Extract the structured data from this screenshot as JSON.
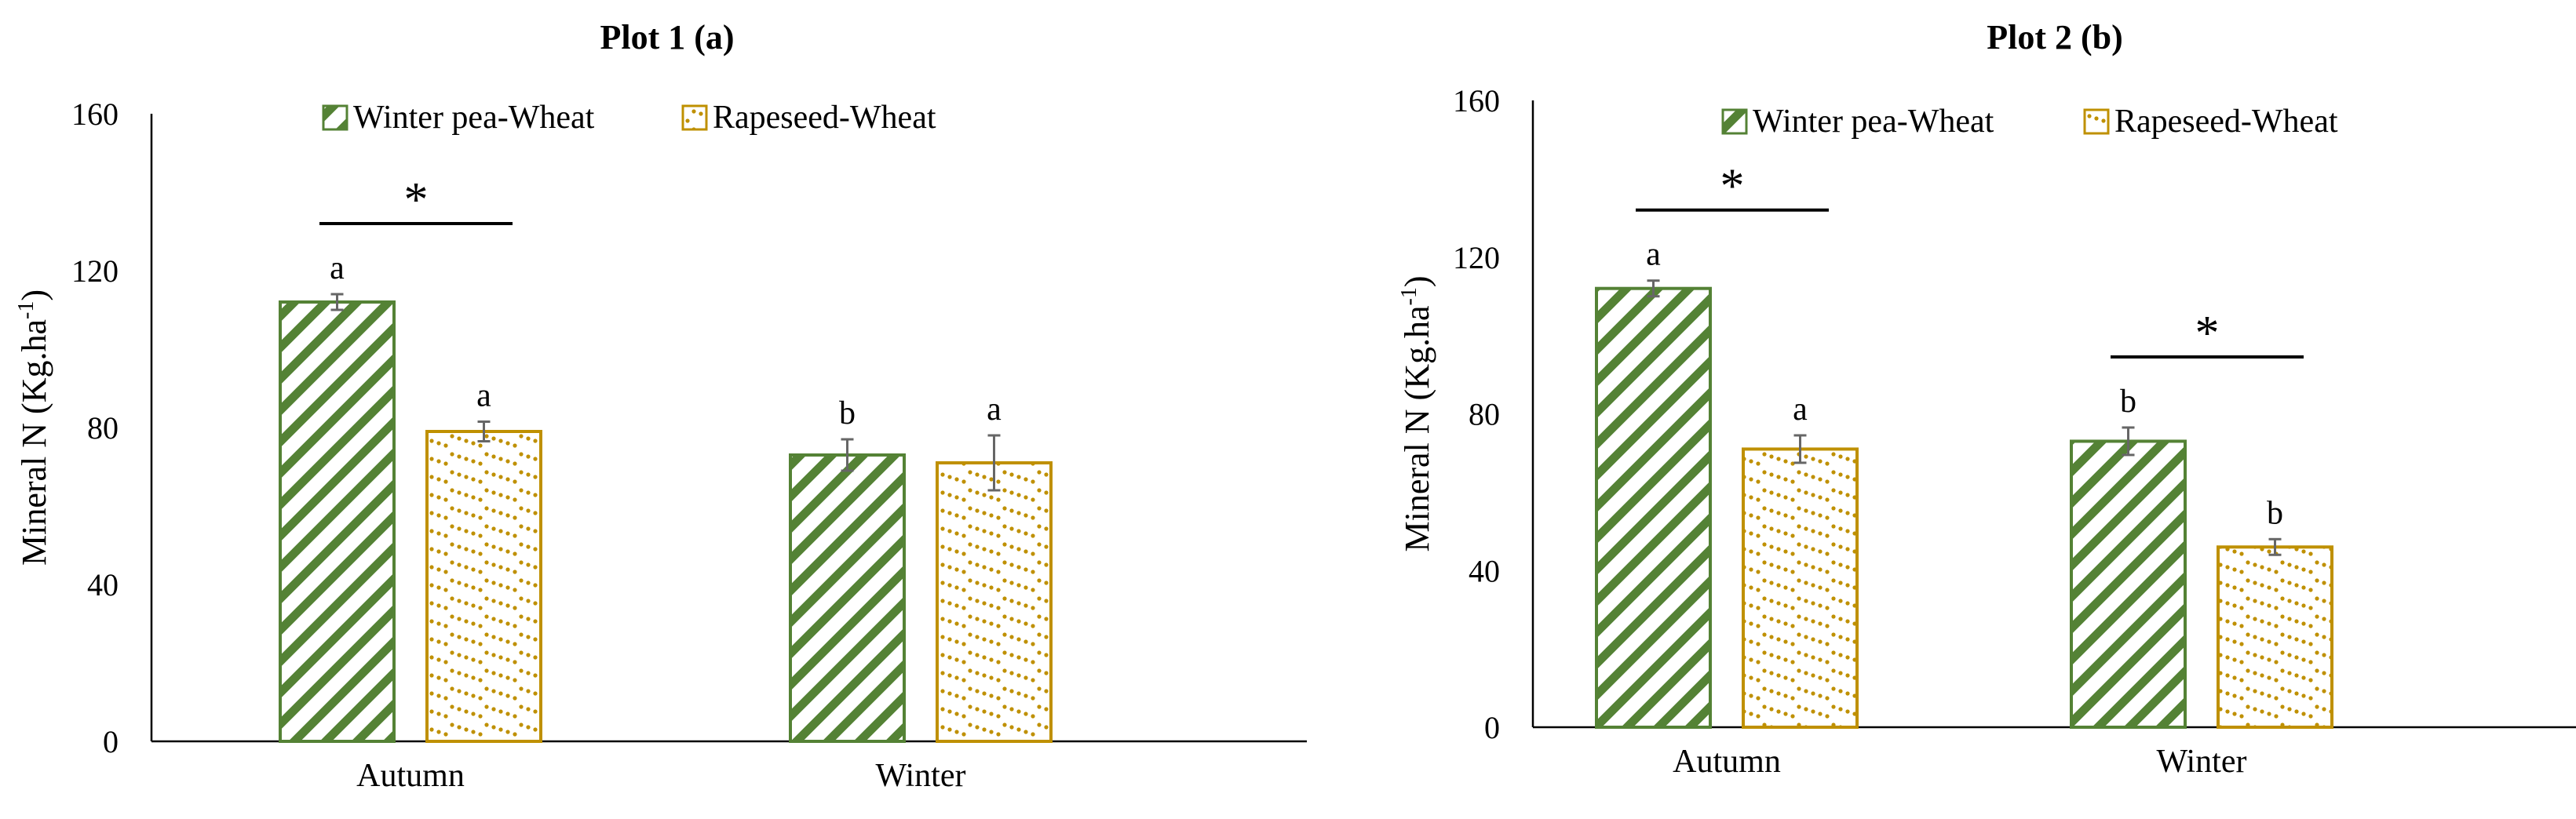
{
  "colors": {
    "pea": "#548235",
    "rapeseed": "#BF9000",
    "axis": "#000000",
    "errorbar": "#666666"
  },
  "chart_data": [
    {
      "type": "bar",
      "title": "Plot 1 (a)",
      "ylabel_main": "Mineral N (Kg.ha",
      "ylabel_sup": "-1",
      "ylabel_close": ")",
      "xlabel": "",
      "ylim": [
        0,
        160
      ],
      "yticks": [
        "0",
        "40",
        "80",
        "120",
        "160"
      ],
      "categories": [
        "Autumn",
        "Winter"
      ],
      "series": [
        {
          "name": "Winter pea-Wheat",
          "values": [
            112,
            73
          ],
          "errors": [
            2,
            4
          ],
          "letters": [
            "a",
            "b"
          ]
        },
        {
          "name": "Rapeseed-Wheat",
          "values": [
            79,
            71
          ],
          "errors": [
            2.5,
            7
          ],
          "letters": [
            "a",
            "a"
          ]
        }
      ],
      "significance": [
        {
          "category": 0,
          "label": "*"
        }
      ],
      "legend": "top-center"
    },
    {
      "type": "bar",
      "title": "Plot 2 (b)",
      "ylabel_main": "Mineral N (Kg.ha",
      "ylabel_sup": "-1",
      "ylabel_close": ")",
      "xlabel": "",
      "ylim": [
        0,
        160
      ],
      "yticks": [
        "0",
        "40",
        "80",
        "120",
        "160"
      ],
      "categories": [
        "Autumn",
        "Winter"
      ],
      "series": [
        {
          "name": "Winter pea-Wheat",
          "values": [
            112,
            73
          ],
          "errors": [
            2,
            3.5
          ],
          "letters": [
            "a",
            "b"
          ]
        },
        {
          "name": "Rapeseed-Wheat",
          "values": [
            71,
            46
          ],
          "errors": [
            3.5,
            2
          ],
          "letters": [
            "a",
            "b"
          ]
        }
      ],
      "significance": [
        {
          "category": 0,
          "label": "*"
        },
        {
          "category": 1,
          "label": "*"
        }
      ],
      "legend": "top-center"
    }
  ]
}
